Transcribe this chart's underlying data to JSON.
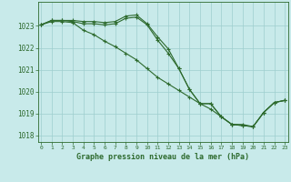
{
  "x": [
    0,
    1,
    2,
    3,
    4,
    5,
    6,
    7,
    8,
    9,
    10,
    11,
    12,
    13,
    14,
    15,
    16,
    17,
    18,
    19,
    20,
    21,
    22,
    23
  ],
  "line1": [
    1023.05,
    1023.25,
    1023.25,
    1023.25,
    1023.2,
    1023.2,
    1023.15,
    1023.2,
    1023.45,
    1023.5,
    1023.1,
    1022.5,
    1021.95,
    1021.05,
    1020.1,
    1019.45,
    1019.45,
    1018.85,
    1018.5,
    1018.5,
    1018.4,
    1019.05,
    1019.5,
    1019.6
  ],
  "line2": [
    1023.05,
    1023.25,
    1023.25,
    1023.2,
    1023.1,
    1023.1,
    1023.05,
    1023.1,
    1023.35,
    1023.4,
    1023.05,
    1022.35,
    1021.75,
    1021.05,
    1020.1,
    1019.45,
    1019.45,
    1018.85,
    1018.5,
    1018.45,
    1018.4,
    1019.05,
    1019.5,
    1019.6
  ],
  "line3": [
    1023.05,
    1023.2,
    1023.2,
    1023.15,
    1022.8,
    1022.6,
    1022.3,
    1022.05,
    1021.75,
    1021.45,
    1021.05,
    1020.65,
    1020.35,
    1020.05,
    1019.75,
    1019.45,
    1019.2,
    1018.85,
    1018.5,
    1018.45,
    1018.4,
    1019.05,
    1019.5,
    1019.6
  ],
  "ylim": [
    1017.7,
    1024.1
  ],
  "yticks": [
    1018,
    1019,
    1020,
    1021,
    1022,
    1023
  ],
  "xticks": [
    0,
    1,
    2,
    3,
    4,
    5,
    6,
    7,
    8,
    9,
    10,
    11,
    12,
    13,
    14,
    15,
    16,
    17,
    18,
    19,
    20,
    21,
    22,
    23
  ],
  "line_color": "#2d6a2d",
  "bg_color": "#c8eaea",
  "grid_color": "#9ecece",
  "xlabel": "Graphe pression niveau de la mer (hPa)",
  "xlabel_color": "#2d6a2d",
  "marker": "+",
  "marker_size": 3,
  "linewidth": 0.8
}
